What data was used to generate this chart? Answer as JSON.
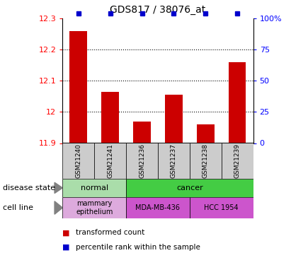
{
  "title": "GDS817 / 38076_at",
  "samples": [
    "GSM21240",
    "GSM21241",
    "GSM21236",
    "GSM21237",
    "GSM21238",
    "GSM21239"
  ],
  "bar_values": [
    12.26,
    12.065,
    11.97,
    12.055,
    11.96,
    12.16
  ],
  "ylim": [
    11.9,
    12.3
  ],
  "yticks": [
    11.9,
    12.0,
    12.1,
    12.2,
    12.3
  ],
  "ytick_labels": [
    "11.9",
    "12",
    "12.1",
    "12.2",
    "12.3"
  ],
  "y2ticks_pct": [
    0,
    25,
    50,
    75,
    100
  ],
  "y2labels": [
    "0",
    "25",
    "50",
    "75",
    "100%"
  ],
  "bar_color": "#cc0000",
  "dot_color": "#0000cc",
  "sample_bg_color": "#cccccc",
  "normal_color": "#aaddaa",
  "cancer_color": "#44cc44",
  "mammary_color": "#ddaadd",
  "mda_color": "#cc55cc",
  "hcc_color": "#cc55cc",
  "legend_red_label": "transformed count",
  "legend_blue_label": "percentile rank within the sample",
  "disease_state_label": "disease state",
  "cell_line_label": "cell line",
  "normal_label": "normal",
  "cancer_label": "cancer",
  "mammary_label": "mammary\nepithelium",
  "mda_label": "MDA-MB-436",
  "hcc_label": "HCC 1954"
}
